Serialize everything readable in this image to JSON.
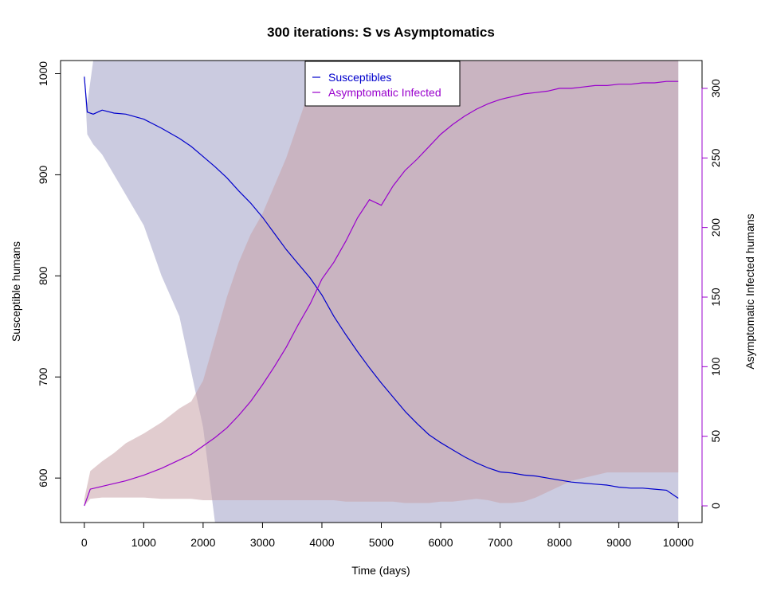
{
  "chart_data": {
    "type": "line",
    "title": "300  iterations: S vs Asymptomatics",
    "xlabel": "Time (days)",
    "ylabel_left": "Susceptible humans",
    "ylabel_right": "Asymptomatic Infected humans",
    "xlim": [
      -400,
      10400
    ],
    "ylim_left": [
      556,
      1013
    ],
    "ylim_right": [
      -12,
      320
    ],
    "x_ticks": [
      0,
      1000,
      2000,
      3000,
      4000,
      5000,
      6000,
      7000,
      8000,
      9000,
      10000
    ],
    "y_left_ticks": [
      600,
      700,
      800,
      900,
      1000
    ],
    "y_right_ticks": [
      0,
      50,
      100,
      150,
      200,
      250,
      300
    ],
    "grid": false,
    "legend_position": "top-center",
    "series": [
      {
        "name": "Susceptibles",
        "axis": "left",
        "color": "#0000CC",
        "band_color": "#8C8CBA",
        "x": [
          0,
          50,
          150,
          300,
          500,
          700,
          1000,
          1300,
          1600,
          1800,
          2000,
          2200,
          2400,
          2600,
          2800,
          3000,
          3200,
          3400,
          3600,
          3800,
          4000,
          4200,
          4400,
          4600,
          4800,
          5000,
          5200,
          5400,
          5600,
          5800,
          6000,
          6200,
          6400,
          6600,
          6800,
          7000,
          7200,
          7400,
          7600,
          7800,
          8000,
          8200,
          8400,
          8600,
          8800,
          9000,
          9200,
          9400,
          9600,
          9800,
          10000
        ],
        "values": [
          997,
          962,
          960,
          964,
          961,
          960,
          955,
          946,
          936,
          928,
          918,
          908,
          897,
          884,
          872,
          858,
          842,
          826,
          812,
          798,
          781,
          760,
          742,
          725,
          709,
          694,
          680,
          666,
          654,
          643,
          635,
          628,
          621,
          615,
          610,
          606,
          605,
          603,
          602,
          600,
          598,
          596,
          595,
          594,
          593,
          591,
          590,
          590,
          589,
          588,
          580
        ],
        "band_upper": [
          1000,
          970,
          1013,
          1013,
          1013,
          1013,
          1013,
          1013,
          1013,
          1013,
          1013,
          1013,
          1013,
          1013,
          1013,
          1013,
          1013,
          1013,
          1013,
          1013,
          1013,
          1013,
          1013,
          1013,
          1013,
          1013,
          1013,
          1013,
          1013,
          1013,
          1013,
          1013,
          1013,
          1013,
          1013,
          1013,
          1013,
          1013,
          1013,
          1013,
          1013,
          1013,
          1013,
          1013,
          1013,
          1013,
          1013,
          1013,
          1013,
          1013,
          1013
        ],
        "band_lower": [
          997,
          940,
          930,
          920,
          900,
          880,
          850,
          800,
          760,
          705,
          650,
          556,
          556,
          556,
          556,
          556,
          556,
          556,
          556,
          556,
          556,
          556,
          556,
          556,
          556,
          556,
          556,
          556,
          556,
          556,
          556,
          556,
          556,
          556,
          556,
          556,
          556,
          556,
          556,
          556,
          556,
          556,
          556,
          556,
          556,
          556,
          556,
          556,
          556,
          556,
          556
        ]
      },
      {
        "name": "Asymptomatic Infected",
        "axis": "right",
        "color": "#9900CC",
        "band_color": "#C8A3A8",
        "x": [
          0,
          100,
          300,
          500,
          700,
          1000,
          1300,
          1600,
          1800,
          2000,
          2200,
          2400,
          2600,
          2800,
          3000,
          3200,
          3400,
          3600,
          3800,
          4000,
          4200,
          4400,
          4600,
          4800,
          5000,
          5200,
          5400,
          5600,
          5800,
          6000,
          6200,
          6400,
          6600,
          6800,
          7000,
          7200,
          7400,
          7600,
          7800,
          8000,
          8200,
          8400,
          8600,
          8800,
          9000,
          9200,
          9400,
          9600,
          9800,
          10000
        ],
        "values": [
          0,
          12,
          14,
          16,
          18,
          22,
          27,
          33,
          37,
          43,
          49,
          56,
          65,
          75,
          87,
          100,
          114,
          130,
          145,
          163,
          175,
          190,
          207,
          220,
          216,
          230,
          241,
          249,
          258,
          267,
          274,
          280,
          285,
          289,
          292,
          294,
          296,
          297,
          298,
          300,
          300,
          301,
          302,
          302,
          303,
          303,
          304,
          304,
          305,
          305
        ],
        "band_upper": [
          5,
          25,
          32,
          38,
          45,
          52,
          60,
          70,
          75,
          90,
          120,
          150,
          175,
          195,
          210,
          230,
          250,
          275,
          300,
          320,
          320,
          320,
          320,
          320,
          320,
          320,
          320,
          320,
          320,
          320,
          320,
          320,
          320,
          320,
          320,
          320,
          320,
          320,
          320,
          320,
          320,
          320,
          320,
          320,
          320,
          320,
          320,
          320,
          320,
          320
        ],
        "band_lower": [
          0,
          5,
          6,
          6,
          6,
          6,
          5,
          5,
          5,
          4,
          4,
          4,
          4,
          4,
          4,
          4,
          4,
          4,
          4,
          4,
          4,
          3,
          3,
          3,
          3,
          3,
          2,
          2,
          2,
          3,
          3,
          4,
          5,
          4,
          2,
          2,
          3,
          6,
          10,
          14,
          18,
          20,
          22,
          24,
          24,
          24,
          24,
          24,
          24,
          24
        ]
      }
    ]
  }
}
